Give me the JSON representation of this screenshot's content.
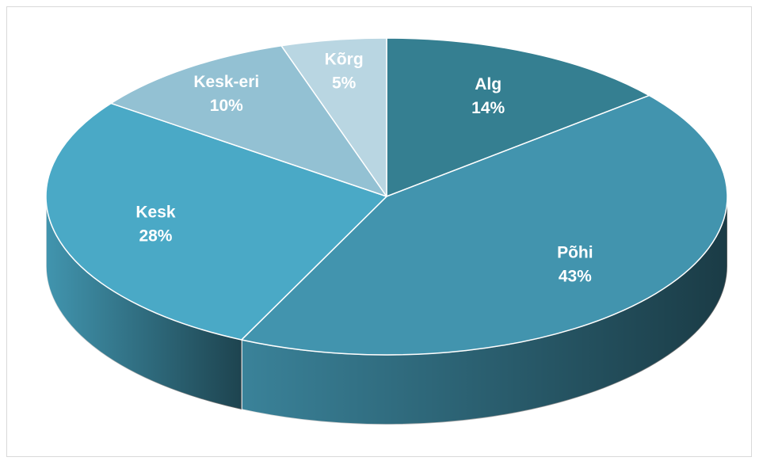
{
  "chart_data": {
    "type": "pie3d",
    "categories": [
      "Alg",
      "Põhi",
      "Kesk",
      "Kesk-eri",
      "Kõrg"
    ],
    "values": [
      14,
      43,
      28,
      10,
      5
    ],
    "value_labels": [
      "14%",
      "43%",
      "28%",
      "10%",
      "5%"
    ],
    "colors": [
      "#357f91",
      "#4294ae",
      "#4aa9c6",
      "#93c1d3",
      "#b9d6e2"
    ]
  }
}
